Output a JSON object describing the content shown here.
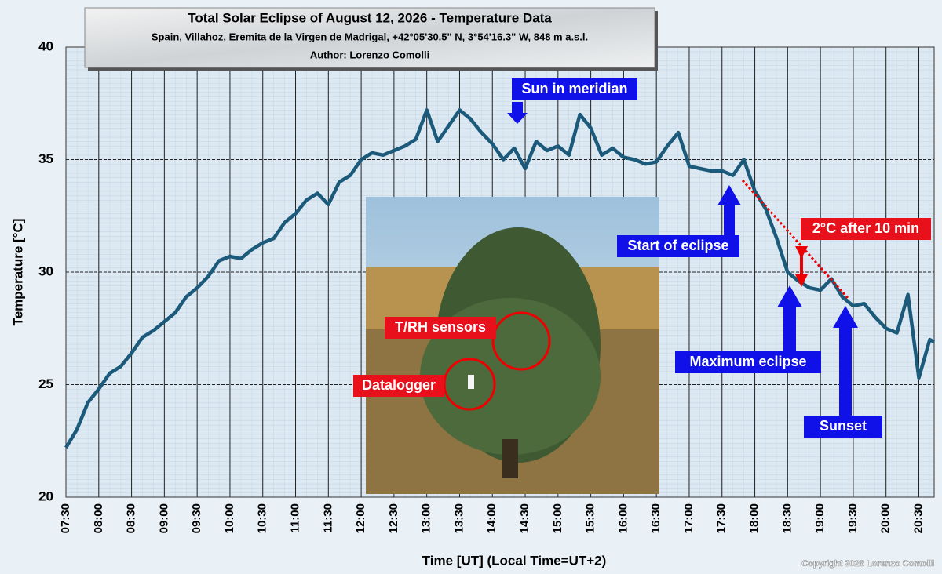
{
  "chart_data": {
    "type": "line",
    "title": "Total Solar Eclipse of August 12, 2026 - Temperature Data",
    "subtitle": "Spain, Villahoz, Eremita de la Virgen de Madrigal, +42°05'30.5\" N, 3°54'16.3\" W, 848 m a.s.l.",
    "author": "Author: Lorenzo Comolli",
    "x_label": "Time [UT]  (Local Time=UT+2)",
    "y_label": "Temperature [°C]",
    "copyright": "Copyright 2026 Lorenzo Comolli",
    "annotations": [
      "Sun in meridian",
      "Start of eclipse",
      "Maximum eclipse",
      "Sunset",
      "2°C after 10 min"
    ],
    "photo_labels": [
      "T/RH sensors",
      "Datalogger"
    ],
    "grid": true,
    "xlim": [
      "07:30",
      "20:44"
    ],
    "xticks": [
      "07:30",
      "08:00",
      "08:30",
      "09:00",
      "09:30",
      "10:00",
      "10:30",
      "11:00",
      "11:30",
      "12:00",
      "12:30",
      "13:00",
      "13:30",
      "14:00",
      "14:30",
      "15:00",
      "15:30",
      "16:00",
      "16:30",
      "17:00",
      "17:30",
      "18:00",
      "18:30",
      "19:00",
      "19:30",
      "20:00",
      "20:30"
    ],
    "ylim": [
      20,
      40
    ],
    "yticks": [
      20,
      25,
      30,
      35,
      40
    ],
    "x": [
      "07:30",
      "07:40",
      "07:50",
      "08:00",
      "08:10",
      "08:20",
      "08:30",
      "08:40",
      "08:50",
      "09:00",
      "09:10",
      "09:20",
      "09:30",
      "09:40",
      "09:50",
      "10:00",
      "10:10",
      "10:20",
      "10:30",
      "10:40",
      "10:50",
      "11:00",
      "11:10",
      "11:20",
      "11:30",
      "11:40",
      "11:50",
      "12:00",
      "12:10",
      "12:20",
      "12:30",
      "12:40",
      "12:50",
      "13:00",
      "13:10",
      "13:20",
      "13:30",
      "13:40",
      "13:50",
      "14:00",
      "14:10",
      "14:20",
      "14:30",
      "14:40",
      "14:50",
      "15:00",
      "15:10",
      "15:20",
      "15:30",
      "15:40",
      "15:50",
      "16:00",
      "16:10",
      "16:20",
      "16:30",
      "16:40",
      "16:50",
      "17:00",
      "17:10",
      "17:20",
      "17:30",
      "17:40",
      "17:50",
      "18:00",
      "18:10",
      "18:20",
      "18:30",
      "18:40",
      "18:50",
      "19:00",
      "19:10",
      "19:20",
      "19:30",
      "19:40",
      "19:50",
      "20:00",
      "20:10",
      "20:20",
      "20:30",
      "20:40",
      "20:44"
    ],
    "series": [
      {
        "name": "Temperature",
        "color": "#1b5a7a",
        "values": [
          22.2,
          23.0,
          24.2,
          24.8,
          25.5,
          25.8,
          26.4,
          27.1,
          27.4,
          27.8,
          28.2,
          28.9,
          29.3,
          29.8,
          30.5,
          30.7,
          30.6,
          31.0,
          31.3,
          31.5,
          32.2,
          32.6,
          33.2,
          33.5,
          33.0,
          34.0,
          34.3,
          35.0,
          35.3,
          35.2,
          35.4,
          35.6,
          35.9,
          37.2,
          35.8,
          36.5,
          37.2,
          36.8,
          36.2,
          35.7,
          35.0,
          35.5,
          34.6,
          35.8,
          35.4,
          35.6,
          35.2,
          37.0,
          36.4,
          35.2,
          35.5,
          35.1,
          35.0,
          34.8,
          34.9,
          35.6,
          36.2,
          34.7,
          34.6,
          34.5,
          34.5,
          34.3,
          35.0,
          33.6,
          32.8,
          31.5,
          30.0,
          29.6,
          29.3,
          29.2,
          29.7,
          28.9,
          28.5,
          28.6,
          28.0,
          27.5,
          27.3,
          29.0,
          25.3,
          27.0,
          26.9
        ]
      }
    ]
  }
}
